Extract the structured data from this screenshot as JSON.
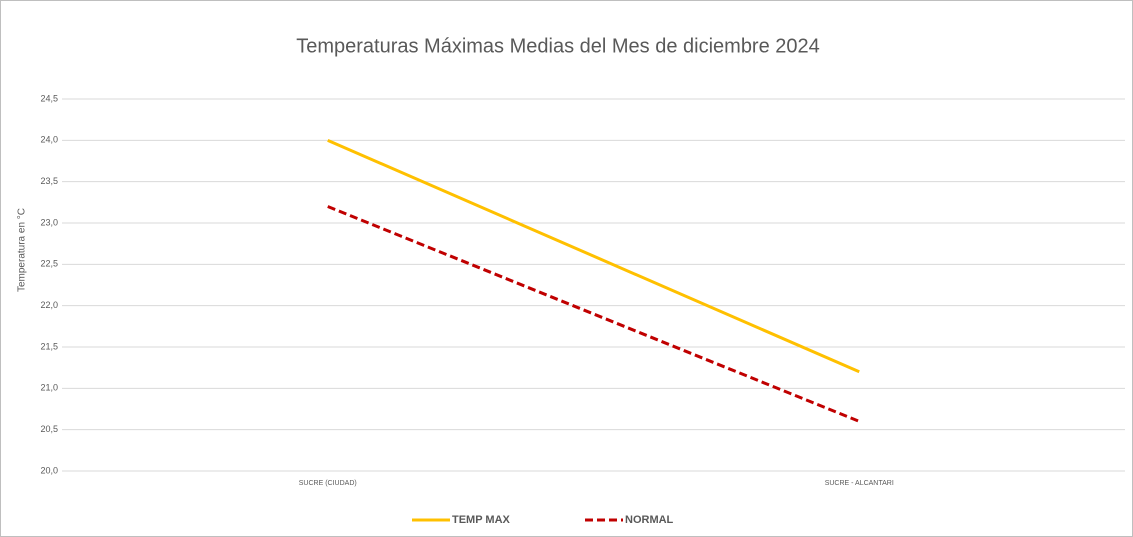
{
  "chart_data": {
    "type": "line",
    "title": "Temperaturas Máximas Medias del Mes de diciembre 2024",
    "y_label": "Temperatura en °C",
    "categories": [
      "SUCRE (CIUDAD)",
      "SUCRE - ALCANTARI"
    ],
    "series": [
      {
        "name": "TEMP MAX",
        "color": "#ffc000",
        "dash": false,
        "values": [
          24.0,
          21.2
        ]
      },
      {
        "name": "NORMAL",
        "color": "#c00000",
        "dash": true,
        "values": [
          23.2,
          20.6
        ]
      }
    ],
    "ylim": [
      20.0,
      24.5
    ],
    "yticks": [
      {
        "value": 20.0,
        "label": "20,0"
      },
      {
        "value": 20.5,
        "label": "20,5"
      },
      {
        "value": 21.0,
        "label": "21,0"
      },
      {
        "value": 21.5,
        "label": "21,5"
      },
      {
        "value": 22.0,
        "label": "22,0"
      },
      {
        "value": 22.5,
        "label": "22,5"
      },
      {
        "value": 23.0,
        "label": "23,0"
      },
      {
        "value": 23.5,
        "label": "23,5"
      },
      {
        "value": 24.0,
        "label": "24,0"
      },
      {
        "value": 24.5,
        "label": "24,5"
      }
    ],
    "grid": true,
    "legend": "bottom"
  }
}
